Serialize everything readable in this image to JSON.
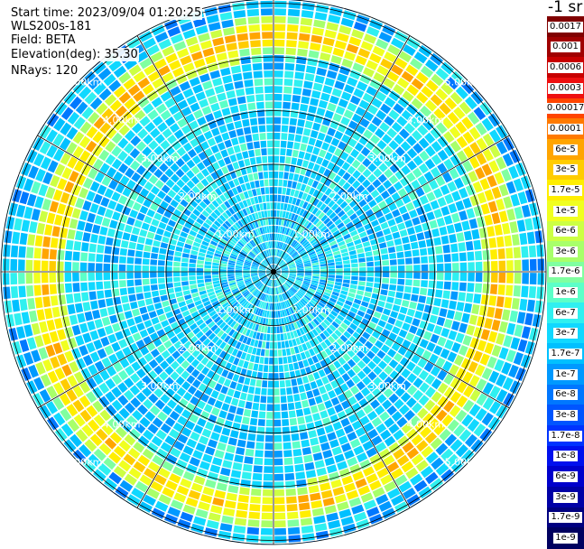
{
  "header": {
    "start_time": "Start time: 2023/09/04 01:20:25",
    "device": "WLS200s-181",
    "field": "Field: BETA",
    "elevation": "Elevation(deg): 35.30",
    "nrays": "NRays: 120"
  },
  "colorbar": {
    "title": "-1 sr",
    "labels": [
      "0.0017",
      "0.001",
      "0.0006",
      "0.0003",
      "0.00017",
      "0.0001",
      "6e-5",
      "3e-5",
      "1.7e-5",
      "1e-5",
      "6e-6",
      "3e-6",
      "1.7e-6",
      "1e-6",
      "6e-7",
      "3e-7",
      "1.7e-7",
      "1e-7",
      "6e-8",
      "3e-8",
      "1.7e-8",
      "1e-8",
      "6e-9",
      "3e-9",
      "1.7e-9",
      "1e-9"
    ],
    "colors": [
      "#800000",
      "#a00000",
      "#c80000",
      "#ee1010",
      "#ff4500",
      "#ff7a00",
      "#ffa500",
      "#ffcc00",
      "#ffee00",
      "#f0ff20",
      "#ccff44",
      "#a8ff6a",
      "#80ffa0",
      "#5cffc8",
      "#30f0f0",
      "#10d8ff",
      "#00c0ff",
      "#0099ff",
      "#0077ff",
      "#0055ff",
      "#0033ff",
      "#0010ee",
      "#0000cc",
      "#0000a6",
      "#000080",
      "#000060"
    ]
  },
  "chart_data": {
    "type": "ppi",
    "field": "BETA",
    "elevation_deg": 35.3,
    "n_rays": 120,
    "range_rings_km": [
      1,
      2,
      3,
      4,
      5
    ],
    "ring_labels": [
      "1.00km",
      "2.00km",
      "3.00km",
      "4.00km",
      "5.00km"
    ],
    "max_range_km": 5.2,
    "spoke_angles_deg": [
      0,
      30,
      60,
      90,
      120,
      150,
      180,
      210,
      240,
      270,
      300,
      330
    ],
    "color_scale": "log",
    "value_range": [
      1e-09,
      0.0017
    ],
    "features": [
      {
        "description": "aerosol/boundary-layer ring",
        "range_km": 4.3,
        "value_level": "1.7e-5 to 1e-4"
      },
      {
        "description": "inner background",
        "range_km": [
          0,
          3.8
        ],
        "value_level": "3e-8 to 1e-6"
      }
    ]
  }
}
